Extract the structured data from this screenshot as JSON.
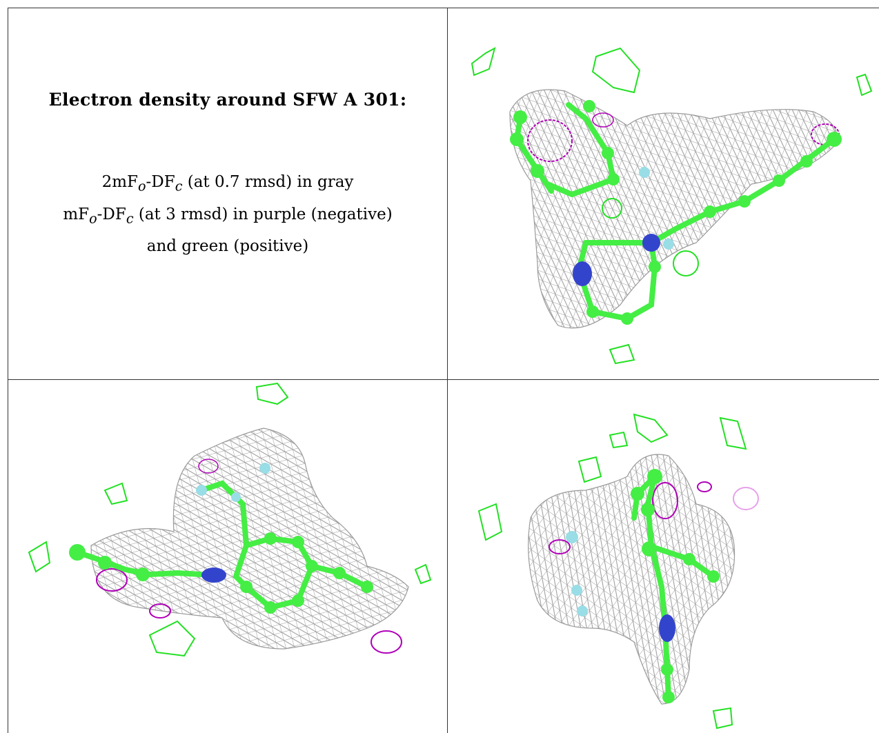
{
  "caption": {
    "title": "Electron density around SFW A 301:",
    "line1": {
      "prefix": "2mF",
      "sub1": "o",
      "mid": "-DF",
      "sub2": "c",
      "suffix": " (at 0.7 rmsd) in gray"
    },
    "line2": {
      "prefix": "mF",
      "sub1": "o",
      "mid": "-DF",
      "sub2": "c",
      "suffix": " (at 3 rmsd) in purple (negative)"
    },
    "line3": "and green (positive)"
  },
  "colors": {
    "gray_mesh": "#9a9a9a",
    "negative_mesh": "#b000b8",
    "positive_mesh": "#22e022",
    "carbon": "#44ee44",
    "nitrogen": "#3344cc",
    "fluorine": "#99dde6",
    "grid_line": "#333333"
  },
  "panels": {
    "top_right": {
      "name": "view-1",
      "icon": "molecule-density-icon"
    },
    "bottom_left": {
      "name": "view-2",
      "icon": "molecule-density-icon"
    },
    "bottom_right": {
      "name": "view-3",
      "icon": "molecule-density-icon"
    }
  }
}
